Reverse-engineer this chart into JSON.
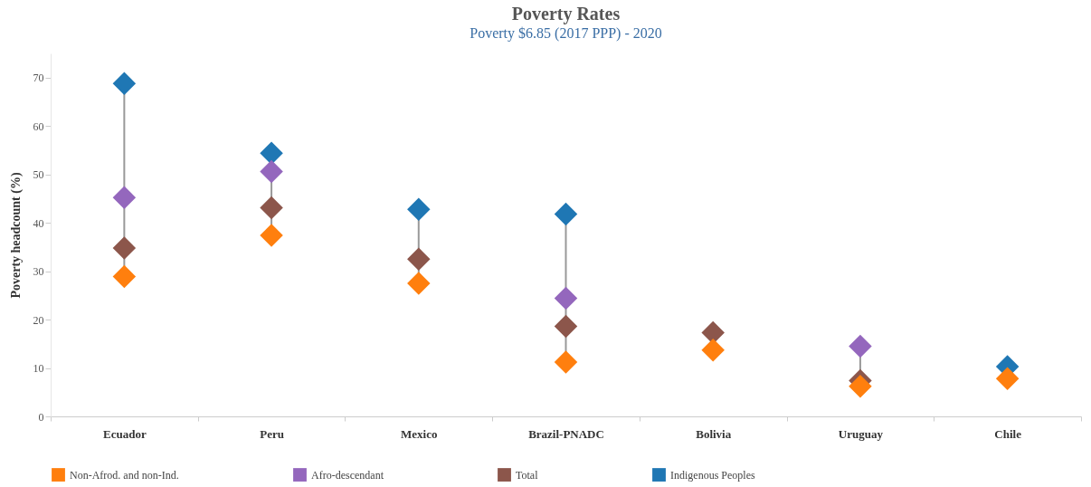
{
  "chart_data": {
    "type": "scatter",
    "title": "Poverty Rates",
    "subtitle": "Poverty $6.85 (2017 PPP) - 2020",
    "ylabel": "Poverty headcount (%)",
    "categories": [
      "Ecuador",
      "Peru",
      "Mexico",
      "Brazil-PNADC",
      "Bolivia",
      "Uruguay",
      "Chile"
    ],
    "series": [
      {
        "name": "Non-Afrod. and non-Ind.",
        "color": "#ff7f0e",
        "values": [
          28.9,
          37.4,
          27.5,
          11.2,
          13.7,
          6.2,
          7.8
        ]
      },
      {
        "name": "Afro-descendant",
        "color": "#9467bd",
        "values": [
          45.2,
          50.6,
          null,
          24.4,
          null,
          14.5,
          null
        ]
      },
      {
        "name": "Total",
        "color": "#8c564b",
        "values": [
          34.8,
          43.1,
          32.5,
          18.6,
          17.3,
          7.4,
          null
        ]
      },
      {
        "name": "Indigenous Peoples",
        "color": "#1f77b4",
        "values": [
          68.8,
          54.4,
          42.8,
          41.8,
          null,
          null,
          10.3
        ]
      }
    ],
    "ylim": [
      0,
      75
    ],
    "yticks": [
      0,
      10,
      20,
      30,
      40,
      50,
      60,
      70
    ],
    "marker": "diamond",
    "legend": "bottom",
    "grid": false
  }
}
